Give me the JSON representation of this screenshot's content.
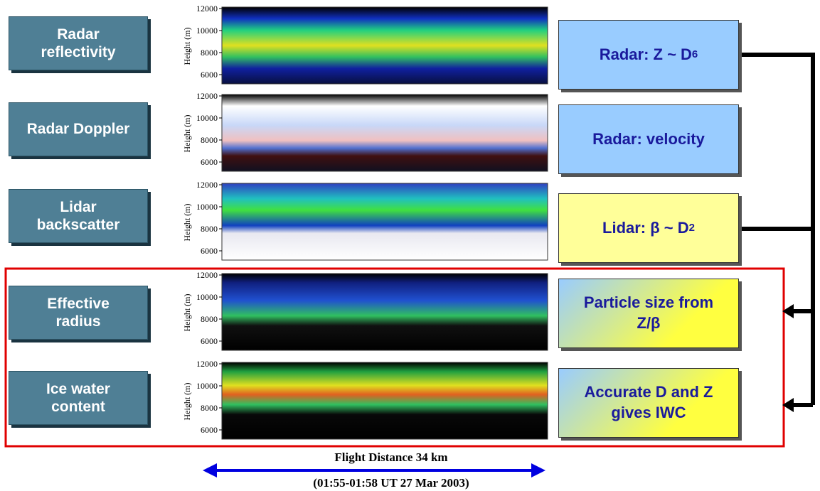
{
  "left_labels": [
    "Radar reflectivity",
    "Radar Doppler",
    "Lidar backscatter",
    "Effective radius",
    "Ice water content"
  ],
  "panels": [
    {
      "y_axis_label": "Height (m)",
      "yticks": [
        12000,
        10000,
        8000,
        6000
      ]
    },
    {
      "y_axis_label": "Height (m)",
      "yticks": [
        12000,
        10000,
        8000,
        6000
      ]
    },
    {
      "y_axis_label": "Height (m)",
      "yticks": [
        12000,
        10000,
        8000,
        6000
      ]
    },
    {
      "y_axis_label": "Height (m)",
      "yticks": [
        12000,
        10000,
        8000,
        6000
      ]
    },
    {
      "y_axis_label": "Height (m)",
      "yticks": [
        12000,
        10000,
        8000,
        6000
      ]
    }
  ],
  "right_labels": [
    {
      "text": "Radar: Z ~ D",
      "sup": "6"
    },
    {
      "text": "Radar: velocity"
    },
    {
      "text": "Lidar: β ~ D",
      "sup": "2"
    },
    {
      "text": "Particle size from Z/β"
    },
    {
      "text": "Accurate D and Z gives IWC"
    }
  ],
  "footer": {
    "line1": "Flight Distance 34 km",
    "line2": "(01:55-01:58 UT  27 Mar 2003)"
  }
}
